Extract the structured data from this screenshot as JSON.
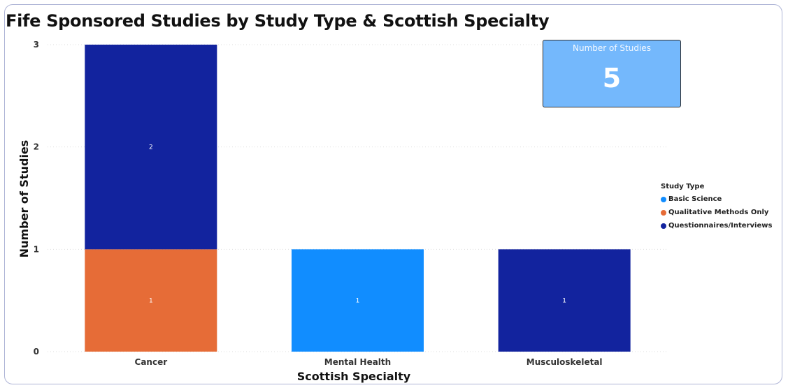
{
  "title": "Fife Sponsored Studies by Study Type & Scottish Specialty",
  "card": {
    "label": "Number of Studies",
    "value": "5",
    "bg_color": "#74b8fc"
  },
  "legend": {
    "title": "Study Type",
    "items": [
      {
        "name": "Basic Science",
        "color": "#118dff"
      },
      {
        "name": "Qualitative Methods Only",
        "color": "#e66c37"
      },
      {
        "name": "Questionnaires/Interviews",
        "color": "#12239e"
      }
    ]
  },
  "chart_data": {
    "type": "bar",
    "stacked": true,
    "categories": [
      "Cancer",
      "Mental Health",
      "Musculoskeletal"
    ],
    "series": [
      {
        "name": "Qualitative Methods Only",
        "color": "#e66c37",
        "values": [
          1,
          0,
          0
        ]
      },
      {
        "name": "Basic Science",
        "color": "#118dff",
        "values": [
          0,
          1,
          0
        ]
      },
      {
        "name": "Questionnaires/Interviews",
        "color": "#12239e",
        "values": [
          2,
          0,
          1
        ]
      }
    ],
    "xlabel": "Scottish Specialty",
    "ylabel": "Number of Studies",
    "yticks": [
      0,
      1,
      2,
      3
    ],
    "ylim": [
      0,
      3
    ],
    "grid": true,
    "legend_position": "right"
  }
}
